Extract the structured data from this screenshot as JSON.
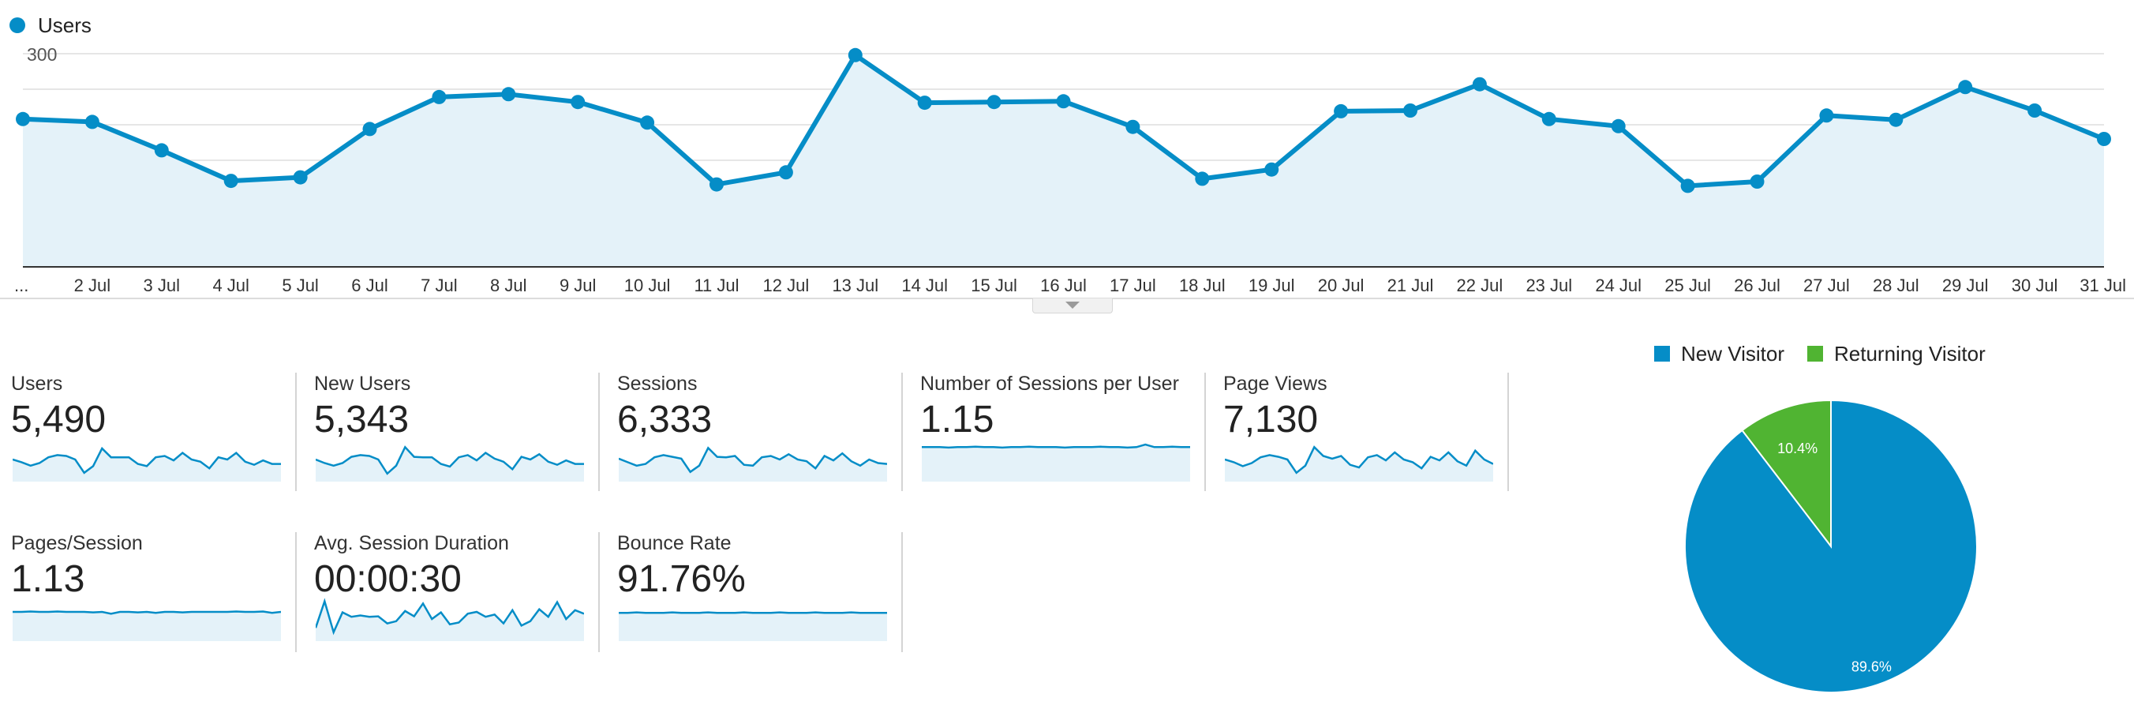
{
  "chart_legend": {
    "label": "Users",
    "color": "#058dc7"
  },
  "chart_data": [
    {
      "type": "area",
      "series": [
        {
          "name": "Users",
          "color": "#058dc7",
          "values": [
            208,
            204,
            164,
            121,
            126,
            194,
            239,
            243,
            232,
            203,
            116,
            133,
            298,
            231,
            232,
            233,
            197,
            124,
            137,
            219,
            220,
            257,
            208,
            198,
            114,
            120,
            213,
            207,
            253,
            220,
            180
          ]
        }
      ],
      "x": [
        "...",
        "2 Jul",
        "3 Jul",
        "4 Jul",
        "5 Jul",
        "6 Jul",
        "7 Jul",
        "8 Jul",
        "9 Jul",
        "10 Jul",
        "11 Jul",
        "12 Jul",
        "13 Jul",
        "14 Jul",
        "15 Jul",
        "16 Jul",
        "17 Jul",
        "18 Jul",
        "19 Jul",
        "20 Jul",
        "21 Jul",
        "22 Jul",
        "23 Jul",
        "24 Jul",
        "25 Jul",
        "26 Jul",
        "27 Jul",
        "28 Jul",
        "29 Jul",
        "30 Jul",
        "31 Jul"
      ],
      "y_ticks": [
        "300",
        "200",
        "100"
      ],
      "ylim": [
        0,
        300
      ],
      "grid": true
    },
    {
      "type": "pie",
      "categories": [
        "New Visitor",
        "Returning Visitor"
      ],
      "values": [
        89.6,
        10.4
      ],
      "labels": [
        "89.6%",
        "10.4%"
      ],
      "colors": [
        "#058dc7",
        "#50b432"
      ]
    }
  ],
  "metrics": [
    {
      "label": "Users",
      "value": "5,490",
      "spark": [
        0.5,
        0.44,
        0.36,
        0.42,
        0.55,
        0.6,
        0.58,
        0.5,
        0.2,
        0.35,
        0.75,
        0.55,
        0.55,
        0.55,
        0.4,
        0.35,
        0.55,
        0.58,
        0.48,
        0.65,
        0.5,
        0.45,
        0.3,
        0.55,
        0.5,
        0.65,
        0.45,
        0.38,
        0.48,
        0.4,
        0.4
      ]
    },
    {
      "label": "New Users",
      "value": "5,343",
      "spark": [
        0.5,
        0.42,
        0.36,
        0.42,
        0.56,
        0.6,
        0.58,
        0.5,
        0.18,
        0.36,
        0.78,
        0.56,
        0.55,
        0.55,
        0.4,
        0.34,
        0.55,
        0.6,
        0.48,
        0.65,
        0.52,
        0.45,
        0.28,
        0.56,
        0.5,
        0.62,
        0.45,
        0.38,
        0.48,
        0.4,
        0.4
      ]
    },
    {
      "label": "Sessions",
      "value": "6,333",
      "spark": [
        0.52,
        0.44,
        0.36,
        0.4,
        0.55,
        0.6,
        0.56,
        0.52,
        0.22,
        0.36,
        0.76,
        0.56,
        0.55,
        0.58,
        0.38,
        0.36,
        0.55,
        0.58,
        0.5,
        0.62,
        0.5,
        0.46,
        0.3,
        0.58,
        0.48,
        0.64,
        0.46,
        0.36,
        0.5,
        0.42,
        0.4
      ]
    },
    {
      "label": "Number of Sessions per User",
      "value": "1.15",
      "spark": [
        0.78,
        0.78,
        0.78,
        0.77,
        0.78,
        0.78,
        0.79,
        0.78,
        0.78,
        0.77,
        0.78,
        0.78,
        0.79,
        0.78,
        0.78,
        0.78,
        0.77,
        0.78,
        0.78,
        0.78,
        0.79,
        0.78,
        0.78,
        0.77,
        0.78,
        0.84,
        0.78,
        0.78,
        0.79,
        0.78,
        0.78
      ]
    },
    {
      "label": "Page Views",
      "value": "7,130",
      "spark": [
        0.5,
        0.44,
        0.35,
        0.42,
        0.55,
        0.6,
        0.56,
        0.5,
        0.2,
        0.36,
        0.78,
        0.58,
        0.52,
        0.58,
        0.38,
        0.32,
        0.55,
        0.6,
        0.48,
        0.66,
        0.5,
        0.44,
        0.3,
        0.56,
        0.48,
        0.66,
        0.46,
        0.36,
        0.7,
        0.5,
        0.4
      ]
    },
    {
      "label": "Pages/Session",
      "value": "1.13",
      "spark": [
        0.66,
        0.66,
        0.67,
        0.66,
        0.66,
        0.67,
        0.66,
        0.66,
        0.66,
        0.65,
        0.66,
        0.62,
        0.66,
        0.66,
        0.65,
        0.66,
        0.64,
        0.66,
        0.66,
        0.65,
        0.66,
        0.66,
        0.66,
        0.66,
        0.66,
        0.67,
        0.66,
        0.66,
        0.67,
        0.64,
        0.66
      ]
    },
    {
      "label": "Avg. Session Duration",
      "value": "00:00:30",
      "spark": [
        0.3,
        0.9,
        0.2,
        0.65,
        0.55,
        0.58,
        0.55,
        0.56,
        0.4,
        0.45,
        0.68,
        0.56,
        0.85,
        0.5,
        0.65,
        0.38,
        0.42,
        0.62,
        0.66,
        0.55,
        0.6,
        0.4,
        0.7,
        0.35,
        0.45,
        0.72,
        0.55,
        0.88,
        0.5,
        0.7,
        0.62
      ]
    },
    {
      "label": "Bounce Rate",
      "value": "91.76%",
      "spark": [
        0.64,
        0.64,
        0.65,
        0.64,
        0.64,
        0.64,
        0.65,
        0.64,
        0.64,
        0.64,
        0.65,
        0.64,
        0.64,
        0.64,
        0.65,
        0.64,
        0.64,
        0.64,
        0.65,
        0.64,
        0.64,
        0.64,
        0.65,
        0.64,
        0.64,
        0.64,
        0.65,
        0.64,
        0.64,
        0.64,
        0.64
      ]
    }
  ]
}
